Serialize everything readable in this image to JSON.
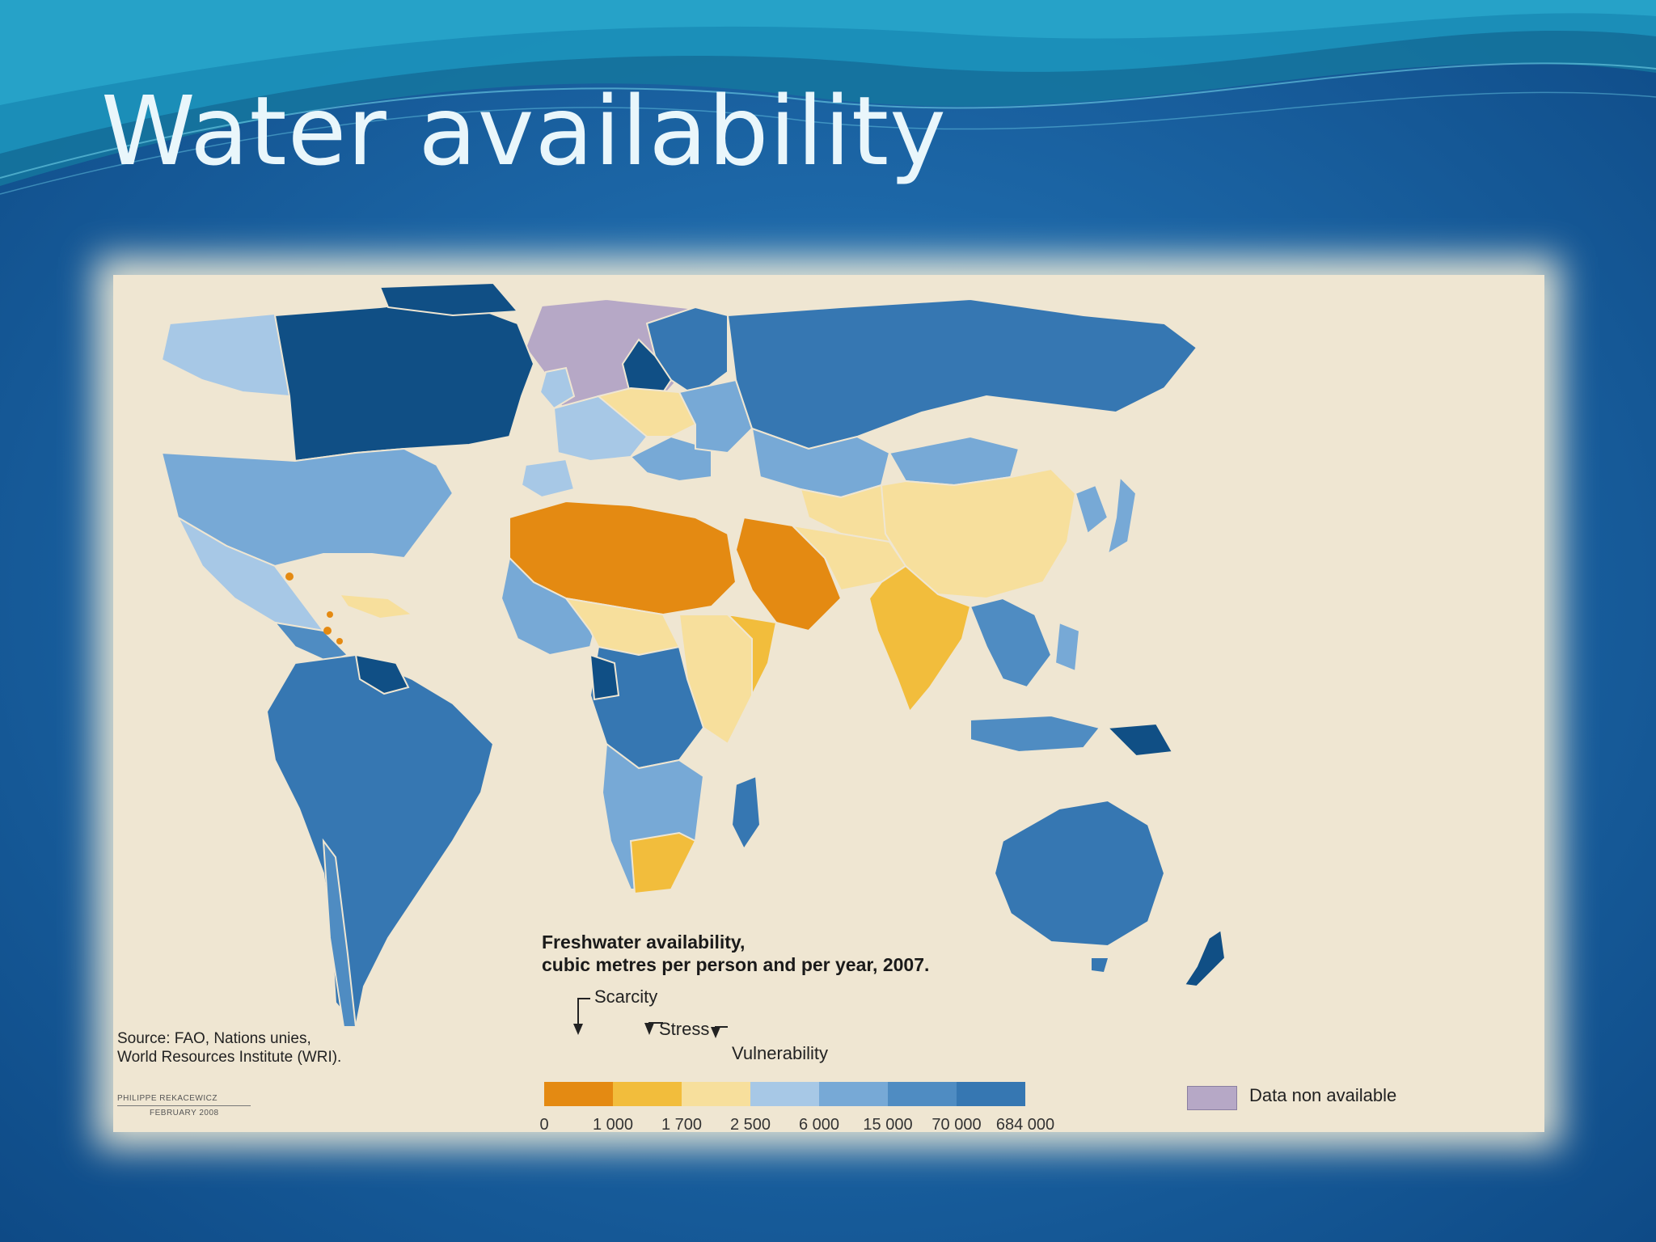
{
  "slide": {
    "title": "Water availability"
  },
  "map": {
    "legend_title": [
      "Freshwater availability,",
      "cubic metres per person and per year, 2007."
    ],
    "thresholds": {
      "scarcity": "Scarcity",
      "stress": "Stress",
      "vulnerability": "Vulnerability"
    },
    "classes": [
      {
        "label": "0",
        "color": "#e48a12"
      },
      {
        "label": "1 000",
        "color": "#f2bd3c"
      },
      {
        "label": "1 700",
        "color": "#f7df9c"
      },
      {
        "label": "2 500",
        "color": "#a7c8e6"
      },
      {
        "label": "6 000",
        "color": "#77a9d6"
      },
      {
        "label": "15 000",
        "color": "#4f8cc2"
      },
      {
        "label": "70 000",
        "color": "#3677b2"
      },
      {
        "label": "684 000",
        "color": "#104f85"
      }
    ],
    "no_data": {
      "label": "Data non available",
      "color": "#b6a8c6"
    },
    "source": [
      "Source: FAO, Nations unies,",
      "World Resources Institute (WRI)."
    ],
    "credit": [
      "PHILIPPE REKACEWICZ",
      "FEBRUARY 2008"
    ]
  }
}
